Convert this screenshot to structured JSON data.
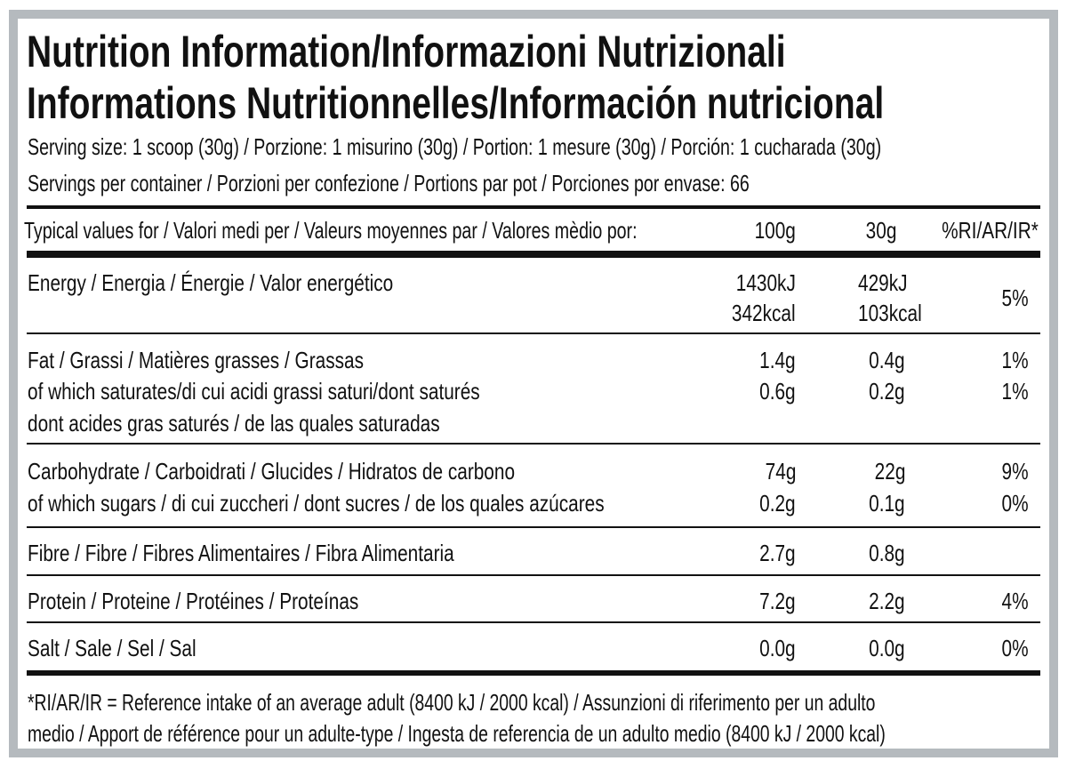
{
  "title_line1": "Nutrition Information/Informazioni Nutrizionali",
  "title_line2": "Informations Nutritionnelles/Información nutricional",
  "serving_size": "Serving size: 1 scoop (30g) / Porzione: 1 misurino (30g) / Portion: 1 mesure (30g) / Porción: 1 cucharada (30g)",
  "servings_per_container": "Servings per container / Porzioni per confezione / Portions par pot / Porciones por envase: 66",
  "header": {
    "label": "Typical values for / Valori medi per / Valeurs moyennes par / Valores mèdio por:",
    "col1": "100g",
    "col2": "30g",
    "col3": "%RI/AR/IR*"
  },
  "rows": {
    "energy": {
      "label": "Energy / Energia / Énergie / Valor energético",
      "v100_kj": "1430kJ",
      "v100_kcal": "342kcal",
      "v30_kj": "429kJ",
      "v30_kcal": "103kcal",
      "ri": "5%"
    },
    "fat": {
      "label": "Fat / Grassi / Matières grasses / Grassas",
      "v100": "1.4g",
      "v30": "0.4g",
      "ri": "1%"
    },
    "saturates": {
      "label": "of which saturates/di cui acidi grassi saturi/dont saturés",
      "label2": "dont acides gras saturés / de las quales saturadas",
      "v100": "0.6g",
      "v30": "0.2g",
      "ri": "1%"
    },
    "carbohydrate": {
      "label": "Carbohydrate / Carboidrati / Glucides / Hidratos de carbono",
      "v100": "74g",
      "v30": "22g",
      "ri": "9%"
    },
    "sugars": {
      "label": "of which sugars / di cui zuccheri / dont sucres / de los quales azúcares",
      "v100": "0.2g",
      "v30": "0.1g",
      "ri": "0%"
    },
    "fibre": {
      "label": "Fibre / Fibre / Fibres Alimentaires / Fibra Alimentaria",
      "v100": "2.7g",
      "v30": "0.8g"
    },
    "protein": {
      "label": "Protein / Proteine / Protéines / Proteínas",
      "v100": "7.2g",
      "v30": "2.2g",
      "ri": "4%"
    },
    "salt": {
      "label": "Salt / Sale / Sel / Sal",
      "v100": "0.0g",
      "v30": "0.0g",
      "ri": "0%"
    }
  },
  "footnote_line1": "*RI/AR/IR = Reference intake of an average adult (8400 kJ / 2000 kcal)  / Assunzioni di riferimento per un adulto",
  "footnote_line2": "medio / Apport de référence pour un adulte-type / Ingesta de referencia de un adulto medio (8400 kJ / 2000 kcal)",
  "colors": {
    "border": "#b5babe",
    "text": "#111111"
  }
}
